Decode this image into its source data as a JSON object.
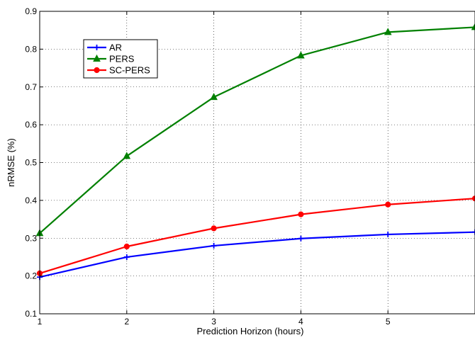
{
  "chart_data": {
    "type": "line",
    "title": "",
    "xlabel": "Prediction Horizon (hours)",
    "ylabel": "nRMSE (%)",
    "xlim": [
      1,
      6
    ],
    "ylim": [
      0.1,
      0.9
    ],
    "x_ticks": [
      1,
      2,
      3,
      4,
      5
    ],
    "y_ticks": [
      0.1,
      0.2,
      0.3,
      0.4,
      0.5,
      0.6,
      0.7,
      0.8,
      0.9
    ],
    "grid": true,
    "legend_position": "top-left",
    "series": [
      {
        "name": "AR",
        "color": "#0000ff",
        "marker": "plus",
        "x": [
          1,
          2,
          3,
          4,
          5,
          6
        ],
        "values": [
          0.197,
          0.25,
          0.28,
          0.299,
          0.31,
          0.316
        ]
      },
      {
        "name": "PERS",
        "color": "#008000",
        "marker": "triangle",
        "x": [
          1,
          2,
          3,
          4,
          5,
          6
        ],
        "values": [
          0.313,
          0.517,
          0.673,
          0.783,
          0.845,
          0.858
        ]
      },
      {
        "name": "SC-PERS",
        "color": "#ff0000",
        "marker": "circle",
        "x": [
          1,
          2,
          3,
          4,
          5,
          6
        ],
        "values": [
          0.207,
          0.278,
          0.326,
          0.363,
          0.389,
          0.405
        ]
      }
    ]
  }
}
